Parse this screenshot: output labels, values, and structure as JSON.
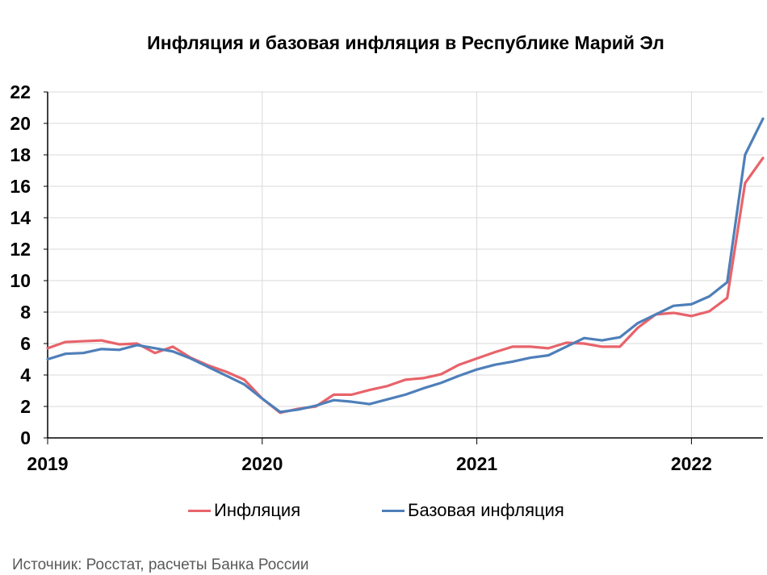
{
  "chart_data": {
    "type": "line",
    "title": "Инфляция и базовая инфляция в Республике Марий Эл",
    "xlabel": "",
    "ylabel": "",
    "ylim": [
      0,
      22
    ],
    "yticks": [
      0,
      2,
      4,
      6,
      8,
      10,
      12,
      14,
      16,
      18,
      20,
      22
    ],
    "xlim": [
      0,
      40
    ],
    "xticks": [
      {
        "pos": 0,
        "label": "2019"
      },
      {
        "pos": 12,
        "label": "2020"
      },
      {
        "pos": 24,
        "label": "2021"
      },
      {
        "pos": 36,
        "label": "2022"
      }
    ],
    "grid": true,
    "legend_position": "bottom",
    "series": [
      {
        "name": "Инфляция",
        "color": "#e8636a",
        "values": [
          5.7,
          6.1,
          6.15,
          6.2,
          5.95,
          6.0,
          5.4,
          5.8,
          5.1,
          4.6,
          4.2,
          3.7,
          2.5,
          1.6,
          1.85,
          2.0,
          2.75,
          2.75,
          3.05,
          3.3,
          3.7,
          3.8,
          4.05,
          4.65,
          5.05,
          5.45,
          5.8,
          5.8,
          5.7,
          6.05,
          6.0,
          5.8,
          5.8,
          7.0,
          7.85,
          7.95,
          7.75,
          8.05,
          8.9,
          16.2,
          17.8
        ]
      },
      {
        "name": "Базовая инфляция",
        "color": "#4e7fb9",
        "values": [
          5.0,
          5.35,
          5.4,
          5.65,
          5.6,
          5.9,
          5.7,
          5.5,
          5.05,
          4.5,
          3.95,
          3.4,
          2.5,
          1.65,
          1.8,
          2.05,
          2.4,
          2.3,
          2.15,
          2.45,
          2.75,
          3.15,
          3.5,
          3.95,
          4.35,
          4.65,
          4.85,
          5.1,
          5.25,
          5.8,
          6.35,
          6.2,
          6.4,
          7.3,
          7.85,
          8.4,
          8.5,
          9.0,
          9.9,
          18.0,
          20.3
        ]
      }
    ],
    "source": "Источник: Росстат, расчеты Банка России"
  }
}
